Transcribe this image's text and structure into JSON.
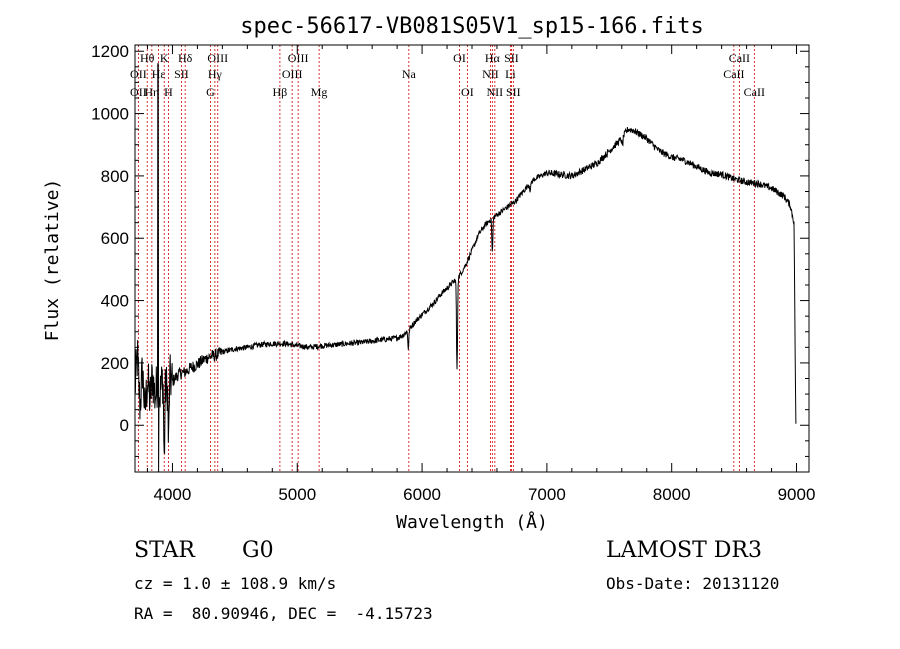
{
  "chart_data": {
    "type": "line",
    "title": "spec-56617-VB081S05V1_sp15-166.fits",
    "xlabel": "Wavelength (Å)",
    "ylabel": "Flux (relative)",
    "xlim": [
      3700,
      9100
    ],
    "ylim": [
      -150,
      1220
    ],
    "xticks": [
      4000,
      5000,
      6000,
      7000,
      8000,
      9000
    ],
    "yticks": [
      0,
      200,
      400,
      600,
      800,
      1000,
      1200
    ],
    "spectrum_anchor_points": [
      [
        3700,
        120
      ],
      [
        3720,
        220
      ],
      [
        3740,
        60
      ],
      [
        3760,
        180
      ],
      [
        3780,
        40
      ],
      [
        3800,
        150
      ],
      [
        3820,
        80
      ],
      [
        3840,
        160
      ],
      [
        3860,
        90
      ],
      [
        3880,
        140
      ],
      [
        3900,
        100
      ],
      [
        3920,
        150
      ],
      [
        3950,
        120
      ],
      [
        3980,
        150
      ],
      [
        4000,
        140
      ],
      [
        4050,
        165
      ],
      [
        4100,
        170
      ],
      [
        4150,
        185
      ],
      [
        4200,
        195
      ],
      [
        4250,
        210
      ],
      [
        4300,
        220
      ],
      [
        4350,
        225
      ],
      [
        4400,
        235
      ],
      [
        4500,
        245
      ],
      [
        4600,
        250
      ],
      [
        4700,
        258
      ],
      [
        4800,
        262
      ],
      [
        4900,
        262
      ],
      [
        5000,
        255
      ],
      [
        5100,
        250
      ],
      [
        5200,
        255
      ],
      [
        5300,
        258
      ],
      [
        5400,
        262
      ],
      [
        5500,
        265
      ],
      [
        5600,
        270
      ],
      [
        5700,
        275
      ],
      [
        5800,
        280
      ],
      [
        5850,
        290
      ],
      [
        5900,
        310
      ],
      [
        5950,
        335
      ],
      [
        6000,
        355
      ],
      [
        6050,
        375
      ],
      [
        6100,
        395
      ],
      [
        6150,
        420
      ],
      [
        6200,
        440
      ],
      [
        6250,
        460
      ],
      [
        6300,
        480
      ],
      [
        6350,
        515
      ],
      [
        6400,
        560
      ],
      [
        6450,
        610
      ],
      [
        6500,
        640
      ],
      [
        6550,
        660
      ],
      [
        6600,
        675
      ],
      [
        6650,
        690
      ],
      [
        6700,
        705
      ],
      [
        6750,
        720
      ],
      [
        6800,
        745
      ],
      [
        6850,
        770
      ],
      [
        6900,
        790
      ],
      [
        6950,
        800
      ],
      [
        7000,
        810
      ],
      [
        7100,
        805
      ],
      [
        7200,
        800
      ],
      [
        7300,
        820
      ],
      [
        7400,
        840
      ],
      [
        7500,
        880
      ],
      [
        7600,
        920
      ],
      [
        7650,
        950
      ],
      [
        7700,
        945
      ],
      [
        7800,
        920
      ],
      [
        7900,
        880
      ],
      [
        8000,
        860
      ],
      [
        8100,
        850
      ],
      [
        8200,
        830
      ],
      [
        8300,
        810
      ],
      [
        8400,
        805
      ],
      [
        8500,
        790
      ],
      [
        8600,
        780
      ],
      [
        8700,
        775
      ],
      [
        8800,
        760
      ],
      [
        8900,
        735
      ],
      [
        8950,
        705
      ],
      [
        8980,
        650
      ],
      [
        8990,
        200
      ],
      [
        8995,
        0
      ]
    ],
    "absorption_features": [
      {
        "wavelength": 3934,
        "depth": 250
      },
      {
        "wavelength": 3969,
        "depth": 200
      },
      {
        "wavelength": 5890,
        "depth": 60
      },
      {
        "wavelength": 6280,
        "depth": 300
      },
      {
        "wavelength": 6563,
        "depth": 110
      },
      {
        "wavelength": 6867,
        "depth": 25
      },
      {
        "wavelength": 7605,
        "depth": 30
      }
    ],
    "emission_spike": {
      "wavelength": 3885,
      "peak": 1160,
      "trough": -150
    },
    "spectral_lines": [
      {
        "label": "Hθ",
        "wavelength": 3798,
        "row": 1
      },
      {
        "label": "OII",
        "wavelength": 3727,
        "row": 2
      },
      {
        "label": "OII",
        "wavelength": 3727,
        "row": 3
      },
      {
        "label": "Hη",
        "wavelength": 3835,
        "row": 3
      },
      {
        "label": "Hε",
        "wavelength": 3889,
        "row": 2
      },
      {
        "label": "K",
        "wavelength": 3934,
        "row": 1
      },
      {
        "label": "H",
        "wavelength": 3968,
        "row": 3
      },
      {
        "label": "SII",
        "wavelength": 4072,
        "row": 2
      },
      {
        "label": "Hδ",
        "wavelength": 4102,
        "row": 1
      },
      {
        "label": "OIII",
        "wavelength": 4363,
        "row": 1
      },
      {
        "label": "Hγ",
        "wavelength": 4340,
        "row": 2
      },
      {
        "label": "G",
        "wavelength": 4305,
        "row": 3
      },
      {
        "label": "Hβ",
        "wavelength": 4861,
        "row": 3
      },
      {
        "label": "OIII",
        "wavelength": 5007,
        "row": 1
      },
      {
        "label": "OIII",
        "wavelength": 4959,
        "row": 2
      },
      {
        "label": "Mg",
        "wavelength": 5175,
        "row": 3
      },
      {
        "label": "Na",
        "wavelength": 5894,
        "row": 2
      },
      {
        "label": "OI",
        "wavelength": 6300,
        "row": 1
      },
      {
        "label": "OI",
        "wavelength": 6363,
        "row": 3
      },
      {
        "label": "Hα",
        "wavelength": 6563,
        "row": 1
      },
      {
        "label": "NII",
        "wavelength": 6548,
        "row": 2
      },
      {
        "label": "NII",
        "wavelength": 6583,
        "row": 3
      },
      {
        "label": "SII",
        "wavelength": 6716,
        "row": 1
      },
      {
        "label": "Li",
        "wavelength": 6708,
        "row": 2
      },
      {
        "label": "SII",
        "wavelength": 6731,
        "row": 3
      },
      {
        "label": "CaII",
        "wavelength": 8542,
        "row": 1
      },
      {
        "label": "CaII",
        "wavelength": 8498,
        "row": 2
      },
      {
        "label": "CaII",
        "wavelength": 8662,
        "row": 3
      }
    ],
    "line_marker_color": "#cc0000"
  },
  "info": {
    "class_label": "STAR",
    "subclass_label": "G0",
    "survey": "LAMOST DR3",
    "cz_text": "cz = 1.0 ± 108.9 km/s",
    "obs_date_text": "Obs-Date: 20131120",
    "radec_text": "RA =  80.90946, DEC =  -4.15723"
  }
}
